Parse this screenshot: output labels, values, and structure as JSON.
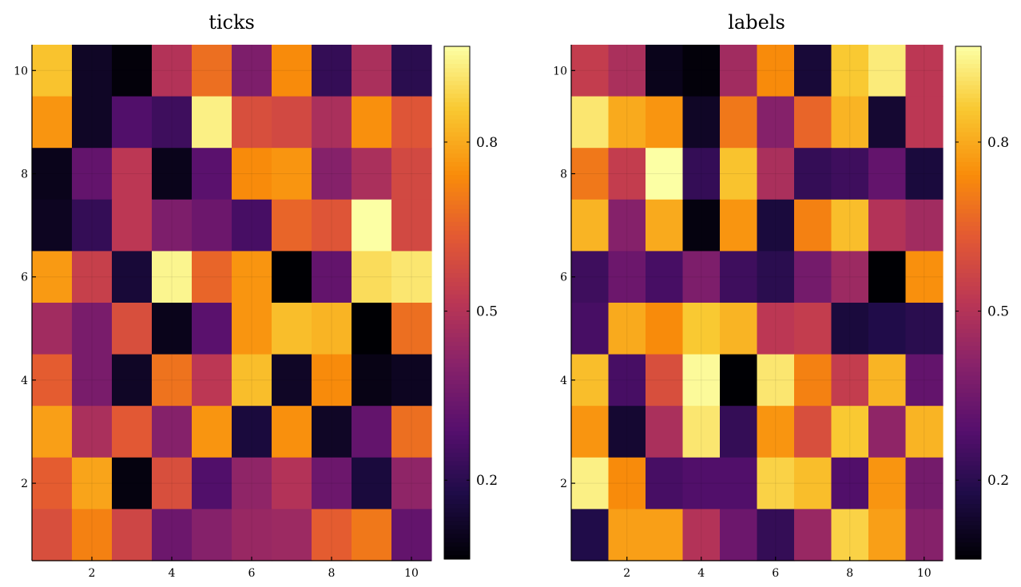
{
  "chart_data": [
    {
      "type": "heatmap",
      "title": "ticks",
      "colormap": "inferno",
      "x_range": [
        0.5,
        10.5
      ],
      "y_range": [
        0.5,
        10.5
      ],
      "x_ticks": [
        "2",
        "4",
        "6",
        "8",
        "10"
      ],
      "y_ticks": [
        "2",
        "4",
        "6",
        "8",
        "10"
      ],
      "colorbar_range": [
        0.06,
        0.97
      ],
      "colorbar_ticks": [
        "0.2",
        "0.5",
        "0.8"
      ],
      "grid": true,
      "z_rows_top_to_bottom": [
        [
          0.85,
          0.12,
          0.07,
          0.5,
          0.68,
          0.38,
          0.74,
          0.22,
          0.48,
          0.2
        ],
        [
          0.76,
          0.12,
          0.28,
          0.24,
          0.94,
          0.6,
          0.58,
          0.48,
          0.75,
          0.62
        ],
        [
          0.1,
          0.32,
          0.52,
          0.1,
          0.3,
          0.74,
          0.76,
          0.4,
          0.48,
          0.58
        ],
        [
          0.11,
          0.22,
          0.52,
          0.38,
          0.34,
          0.26,
          0.66,
          0.62,
          0.97,
          0.58
        ],
        [
          0.77,
          0.55,
          0.15,
          0.95,
          0.66,
          0.76,
          0.06,
          0.32,
          0.9,
          0.92
        ],
        [
          0.46,
          0.37,
          0.6,
          0.1,
          0.3,
          0.76,
          0.84,
          0.82,
          0.06,
          0.68
        ],
        [
          0.64,
          0.37,
          0.12,
          0.69,
          0.52,
          0.84,
          0.12,
          0.74,
          0.09,
          0.11
        ],
        [
          0.78,
          0.48,
          0.63,
          0.4,
          0.76,
          0.16,
          0.75,
          0.12,
          0.32,
          0.68
        ],
        [
          0.64,
          0.79,
          0.08,
          0.6,
          0.28,
          0.42,
          0.5,
          0.34,
          0.16,
          0.42
        ],
        [
          0.6,
          0.72,
          0.57,
          0.34,
          0.4,
          0.44,
          0.45,
          0.64,
          0.7,
          0.32
        ]
      ]
    },
    {
      "type": "heatmap",
      "title": "labels",
      "colormap": "inferno",
      "x_range": [
        0.5,
        10.5
      ],
      "y_range": [
        0.5,
        10.5
      ],
      "x_ticks": [
        "2",
        "4",
        "6",
        "8",
        "10"
      ],
      "y_ticks": [
        "2",
        "4",
        "6",
        "8",
        "10"
      ],
      "colorbar_range": [
        0.06,
        0.97
      ],
      "colorbar_ticks": [
        "0.2",
        "0.5",
        "0.8"
      ],
      "grid": true,
      "z_rows_top_to_bottom": [
        [
          0.54,
          0.48,
          0.1,
          0.07,
          0.46,
          0.74,
          0.15,
          0.86,
          0.93,
          0.52
        ],
        [
          0.92,
          0.8,
          0.76,
          0.12,
          0.7,
          0.4,
          0.66,
          0.82,
          0.14,
          0.52
        ],
        [
          0.7,
          0.54,
          0.97,
          0.22,
          0.85,
          0.48,
          0.22,
          0.24,
          0.32,
          0.16
        ],
        [
          0.82,
          0.4,
          0.8,
          0.08,
          0.76,
          0.16,
          0.72,
          0.84,
          0.5,
          0.46
        ],
        [
          0.24,
          0.34,
          0.26,
          0.38,
          0.24,
          0.2,
          0.36,
          0.45,
          0.06,
          0.75
        ],
        [
          0.26,
          0.8,
          0.74,
          0.86,
          0.82,
          0.52,
          0.54,
          0.16,
          0.18,
          0.2
        ],
        [
          0.84,
          0.26,
          0.6,
          0.96,
          0.06,
          0.92,
          0.72,
          0.54,
          0.82,
          0.32
        ],
        [
          0.76,
          0.14,
          0.48,
          0.92,
          0.22,
          0.76,
          0.6,
          0.86,
          0.42,
          0.82
        ],
        [
          0.94,
          0.74,
          0.26,
          0.28,
          0.28,
          0.88,
          0.84,
          0.28,
          0.76,
          0.36
        ],
        [
          0.18,
          0.78,
          0.78,
          0.5,
          0.34,
          0.22,
          0.44,
          0.88,
          0.78,
          0.4
        ]
      ]
    }
  ]
}
